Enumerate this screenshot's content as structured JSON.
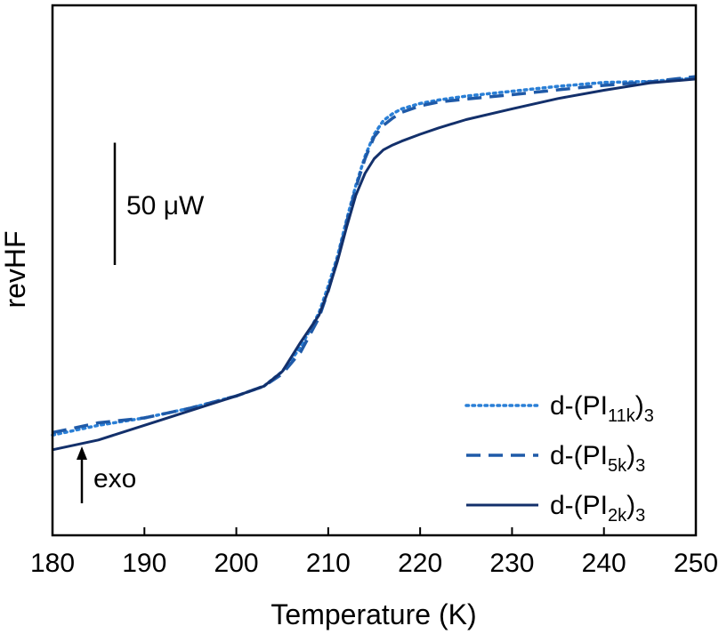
{
  "chart_data": {
    "type": "line",
    "xlabel": "Temperature (K)",
    "ylabel": "revHF",
    "xlim": [
      180,
      250
    ],
    "ylim": [
      0,
      100
    ],
    "xticks": [
      "180",
      "190",
      "200",
      "210",
      "220",
      "230",
      "240",
      "250"
    ],
    "yticks": "none",
    "legend_placement": "bottom-right",
    "annotations": {
      "scale_bar_label": "50 μW",
      "scale_bar_length": 25,
      "exo_label": "exo",
      "exo_direction": "up"
    },
    "series": [
      {
        "name": "d-(PI11k)3",
        "name_main": "d-(PI",
        "name_sub": "11k",
        "name_end": ")3",
        "style": "dotted",
        "color": "#2a7fd6",
        "x": [
          180,
          185,
          190,
          195,
          200,
          203,
          205,
          207,
          209,
          210,
          211,
          212,
          213,
          214,
          215,
          216,
          217,
          218,
          220,
          222,
          225,
          230,
          235,
          240,
          245,
          250
        ],
        "y": [
          20.5,
          22.5,
          24.0,
          26.0,
          28.5,
          30.5,
          33.5,
          38.5,
          45.5,
          51.0,
          57.0,
          64.5,
          71.5,
          77.5,
          82.0,
          84.8,
          86.2,
          87.2,
          88.3,
          89.0,
          89.8,
          90.8,
          91.8,
          92.6,
          92.8,
          93.5
        ]
      },
      {
        "name": "d-(PI5k)3",
        "name_main": "d-(PI",
        "name_sub": "5k",
        "name_end": ")3",
        "style": "dashed",
        "color": "#1f5aa8",
        "x": [
          180,
          185,
          190,
          195,
          200,
          203,
          205,
          207,
          209,
          210,
          211,
          212,
          213,
          214,
          215,
          216,
          217,
          218,
          220,
          222,
          225,
          230,
          235,
          240,
          245,
          250
        ],
        "y": [
          21.0,
          23.0,
          24.0,
          26.0,
          28.5,
          30.5,
          33.0,
          37.5,
          44.5,
          50.0,
          56.5,
          64.0,
          71.0,
          77.0,
          81.5,
          83.8,
          85.3,
          86.5,
          87.8,
          88.6,
          89.2,
          90.1,
          91.1,
          92.0,
          92.7,
          93.8
        ]
      },
      {
        "name": "d-(PI2k)3",
        "name_main": "d-(PI",
        "name_sub": "2k",
        "name_end": ")3",
        "style": "solid",
        "color": "#13306b",
        "x": [
          180,
          185,
          190,
          195,
          200,
          203,
          205,
          207,
          209,
          210,
          211,
          212,
          213,
          214,
          215,
          216,
          217,
          218,
          220,
          222,
          225,
          230,
          235,
          240,
          245,
          250
        ],
        "y": [
          17.5,
          19.5,
          22.5,
          25.5,
          28.5,
          30.5,
          33.5,
          39.5,
          45.0,
          50.0,
          56.0,
          63.0,
          69.5,
          74.0,
          77.0,
          78.8,
          79.8,
          80.6,
          82.0,
          83.3,
          85.0,
          87.2,
          89.3,
          91.0,
          92.5,
          93.3
        ]
      }
    ]
  }
}
